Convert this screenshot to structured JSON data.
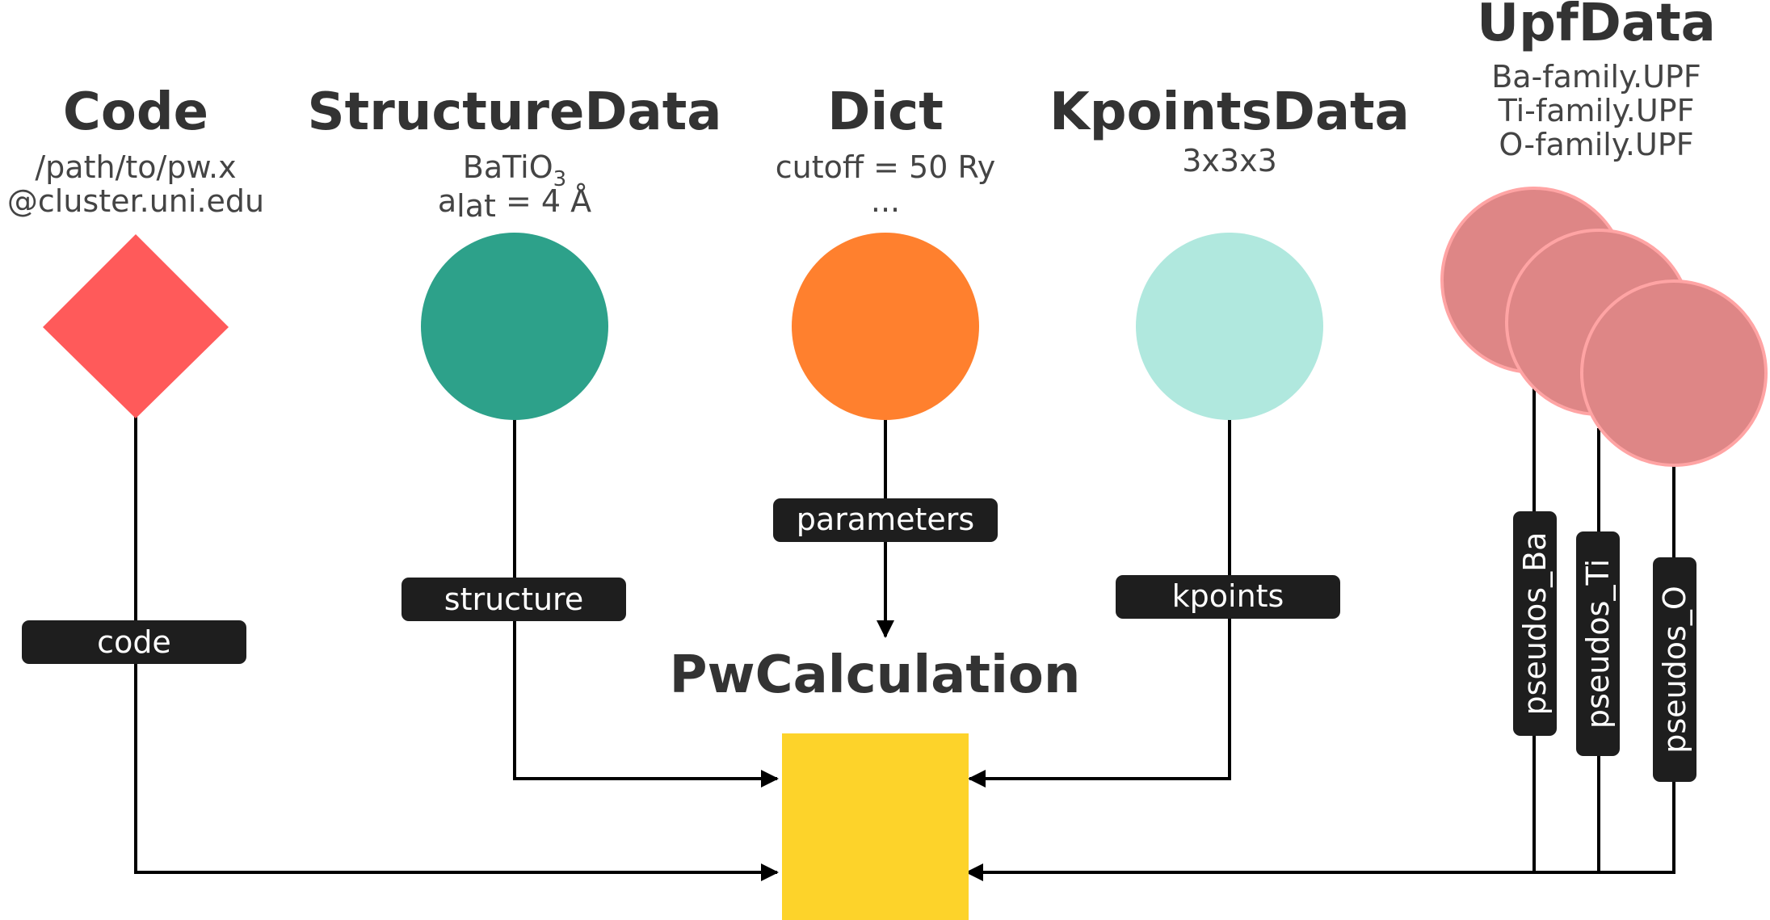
{
  "nodes": {
    "code": {
      "title": "Code",
      "line1": "/path/to/pw.x",
      "line2": "@cluster.uni.edu",
      "color": "#FF5A5A",
      "link_label": "code"
    },
    "structure": {
      "title": "StructureData",
      "formula_base": "BaTiO",
      "formula_sub": "3",
      "lattice_base": "a",
      "lattice_sub": "lat",
      "lattice_rest": " = 4 Å",
      "color": "#2DA18A",
      "link_label": "structure"
    },
    "dict": {
      "title": "Dict",
      "line1": "cutoff = 50 Ry",
      "line2": "...",
      "color": "#FF802E",
      "link_label": "parameters"
    },
    "kpoints": {
      "title": "KpointsData",
      "line1": "3x3x3",
      "color": "#B0E8DE",
      "link_label": "kpoints"
    },
    "upf": {
      "title": "UpfData",
      "line1": "Ba-family.UPF",
      "line2": "Ti-family.UPF",
      "line3": "O-family.UPF",
      "color": "#DE8686",
      "border_color": "#FFA4A4",
      "link_ba": "pseudos_Ba",
      "link_ti": "pseudos_Ti",
      "link_o": "pseudos_O"
    },
    "calc": {
      "title": "PwCalculation",
      "color": "#FDD32A"
    }
  },
  "label_box_color": "#1E1E1E"
}
